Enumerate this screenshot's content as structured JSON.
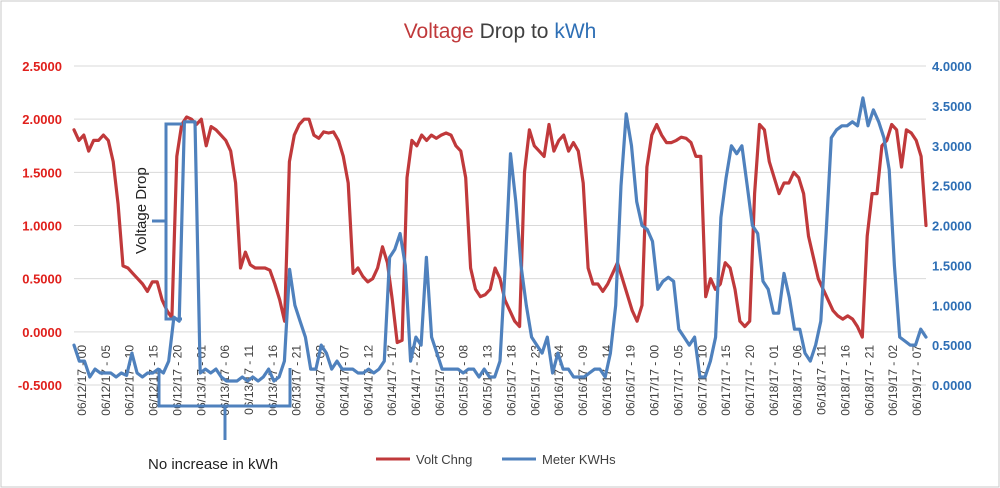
{
  "chart_data": {
    "type": "line",
    "title": {
      "part1": "Voltage",
      "part2": " Drop to ",
      "part3": "kWh"
    },
    "colors": {
      "volt": "#c0393b",
      "kwh": "#4f81bd",
      "left_axis": "#e0201c",
      "right_axis": "#2e6fb5",
      "title_dark": "#404040",
      "border": "#c8c8c8",
      "grid": "#d9d9d9",
      "anno": "#4f81bd"
    },
    "y_left": {
      "min": -0.5,
      "max": 2.5,
      "step": 0.5,
      "ticks": [
        "-0.5000",
        "0.0000",
        "0.5000",
        "1.0000",
        "1.5000",
        "2.0000",
        "2.5000"
      ]
    },
    "y_right": {
      "min": 0,
      "max": 4,
      "step": 0.5,
      "ticks": [
        "0.0000",
        "0.5000",
        "1.0000",
        "1.5000",
        "2.0000",
        "2.5000",
        "3.0000",
        "3.5000",
        "4.0000"
      ]
    },
    "x_tick_labels": [
      "06/12/17 - 00",
      "06/12/17 - 05",
      "06/12/17 - 10",
      "06/12/17 - 15",
      "06/12/17 - 20",
      "06/13/17 - 01",
      "06/13/17 - 06",
      "06/13/17 - 11",
      "06/13/17 - 16",
      "06/13/17 - 21",
      "06/14/17 - 02",
      "06/14/17 - 07",
      "06/14/17 - 12",
      "06/14/17 - 17",
      "06/14/17 - 22",
      "06/15/17 - 03",
      "06/15/17 - 08",
      "06/15/17 - 13",
      "06/15/17 - 18",
      "06/15/17 - 23",
      "06/16/17 - 04",
      "06/16/17 - 09",
      "06/16/17 - 14",
      "06/16/17 - 19",
      "06/17/17 - 00",
      "06/17/17 - 05",
      "06/17/17 - 10",
      "06/17/17 - 15",
      "06/17/17 - 20",
      "06/18/17 - 01",
      "06/18/17 - 06",
      "06/18/17 - 11",
      "06/18/17 - 16",
      "06/18/17 - 21",
      "06/19/17 - 02",
      "06/19/17 - 07"
    ],
    "series": [
      {
        "name": "Volt Chng",
        "axis": "left",
        "values": [
          1.9,
          1.8,
          1.85,
          1.7,
          1.8,
          1.8,
          1.85,
          1.8,
          1.6,
          1.2,
          0.62,
          0.6,
          0.55,
          0.5,
          0.45,
          0.38,
          0.47,
          0.47,
          0.3,
          0.2,
          0.13,
          1.65,
          1.95,
          2.02,
          2.0,
          1.95,
          2.0,
          1.75,
          1.93,
          1.9,
          1.85,
          1.8,
          1.7,
          1.4,
          0.6,
          0.75,
          0.63,
          0.6,
          0.6,
          0.6,
          0.58,
          0.45,
          0.3,
          0.1,
          1.6,
          1.85,
          1.95,
          2.0,
          2.0,
          1.85,
          1.82,
          1.88,
          1.87,
          1.88,
          1.8,
          1.65,
          1.4,
          0.55,
          0.6,
          0.52,
          0.47,
          0.5,
          0.6,
          0.8,
          0.65,
          0.3,
          -0.1,
          -0.08,
          1.45,
          1.8,
          1.75,
          1.85,
          1.8,
          1.85,
          1.82,
          1.85,
          1.87,
          1.85,
          1.75,
          1.7,
          1.45,
          0.6,
          0.4,
          0.33,
          0.35,
          0.4,
          0.6,
          0.5,
          0.3,
          0.2,
          0.1,
          0.05,
          1.5,
          1.9,
          1.75,
          1.7,
          1.65,
          1.95,
          1.7,
          1.8,
          1.85,
          1.7,
          1.78,
          1.7,
          1.4,
          0.6,
          0.45,
          0.45,
          0.38,
          0.45,
          0.55,
          0.65,
          0.5,
          0.35,
          0.2,
          0.1,
          0.25,
          1.55,
          1.85,
          1.95,
          1.85,
          1.78,
          1.78,
          1.8,
          1.83,
          1.82,
          1.78,
          1.65,
          1.65,
          0.33,
          0.5,
          0.4,
          0.45,
          0.65,
          0.6,
          0.4,
          0.1,
          0.05,
          0.1,
          1.3,
          1.95,
          1.9,
          1.6,
          1.45,
          1.3,
          1.4,
          1.4,
          1.5,
          1.45,
          1.3,
          0.9,
          0.7,
          0.5,
          0.4,
          0.3,
          0.2,
          0.15,
          0.12,
          0.15,
          0.12,
          0.05,
          -0.05,
          0.9,
          1.3,
          1.3,
          1.75,
          1.8,
          1.95,
          1.9,
          1.55,
          1.9,
          1.87,
          1.8,
          1.65,
          1.0
        ]
      },
      {
        "name": "Meter KWHs",
        "axis": "right",
        "values": [
          0.5,
          0.3,
          0.3,
          0.1,
          0.2,
          0.15,
          0.15,
          0.15,
          0.1,
          0.15,
          0.12,
          0.4,
          0.15,
          0.1,
          0.15,
          0.15,
          0.2,
          0.15,
          0.3,
          0.85,
          0.8,
          3.3,
          3.3,
          3.3,
          0.15,
          0.2,
          0.15,
          0.2,
          0.1,
          0.05,
          0.05,
          0.05,
          0.1,
          0.05,
          0.1,
          0.05,
          0.1,
          0.2,
          0.05,
          0.1,
          0.3,
          1.45,
          1.0,
          0.8,
          0.6,
          0.2,
          0.2,
          0.5,
          0.4,
          0.2,
          0.3,
          0.2,
          0.2,
          0.2,
          0.15,
          0.15,
          0.2,
          0.15,
          0.2,
          0.3,
          1.6,
          1.7,
          1.9,
          1.5,
          0.3,
          0.6,
          0.5,
          1.6,
          0.6,
          0.4,
          0.2,
          0.2,
          0.2,
          0.2,
          0.15,
          0.2,
          0.2,
          0.1,
          0.2,
          0.1,
          0.1,
          0.3,
          1.5,
          2.9,
          2.3,
          1.5,
          1.0,
          0.6,
          0.5,
          0.4,
          0.6,
          0.15,
          0.4,
          0.2,
          0.2,
          0.1,
          0.1,
          0.1,
          0.15,
          0.2,
          0.2,
          0.1,
          0.4,
          1.0,
          2.5,
          3.4,
          3.0,
          2.3,
          2.0,
          1.95,
          1.8,
          1.2,
          1.3,
          1.35,
          1.3,
          0.7,
          0.6,
          0.5,
          0.6,
          0.1,
          0.1,
          0.3,
          0.6,
          2.1,
          2.6,
          3.0,
          2.9,
          3.0,
          2.5,
          2.0,
          1.9,
          1.3,
          1.2,
          0.9,
          0.9,
          1.4,
          1.1,
          0.7,
          0.7,
          0.4,
          0.3,
          0.5,
          0.8,
          1.9,
          3.1,
          3.2,
          3.25,
          3.25,
          3.3,
          3.25,
          3.6,
          3.25,
          3.45,
          3.3,
          3.1,
          2.7,
          1.5,
          0.6,
          0.55,
          0.5,
          0.5,
          0.7,
          0.6
        ]
      }
    ],
    "legend": {
      "position": "bottom-right"
    },
    "annotations": {
      "voltage_drop": "Voltage Drop",
      "no_increase": "No increase in kWh"
    }
  }
}
